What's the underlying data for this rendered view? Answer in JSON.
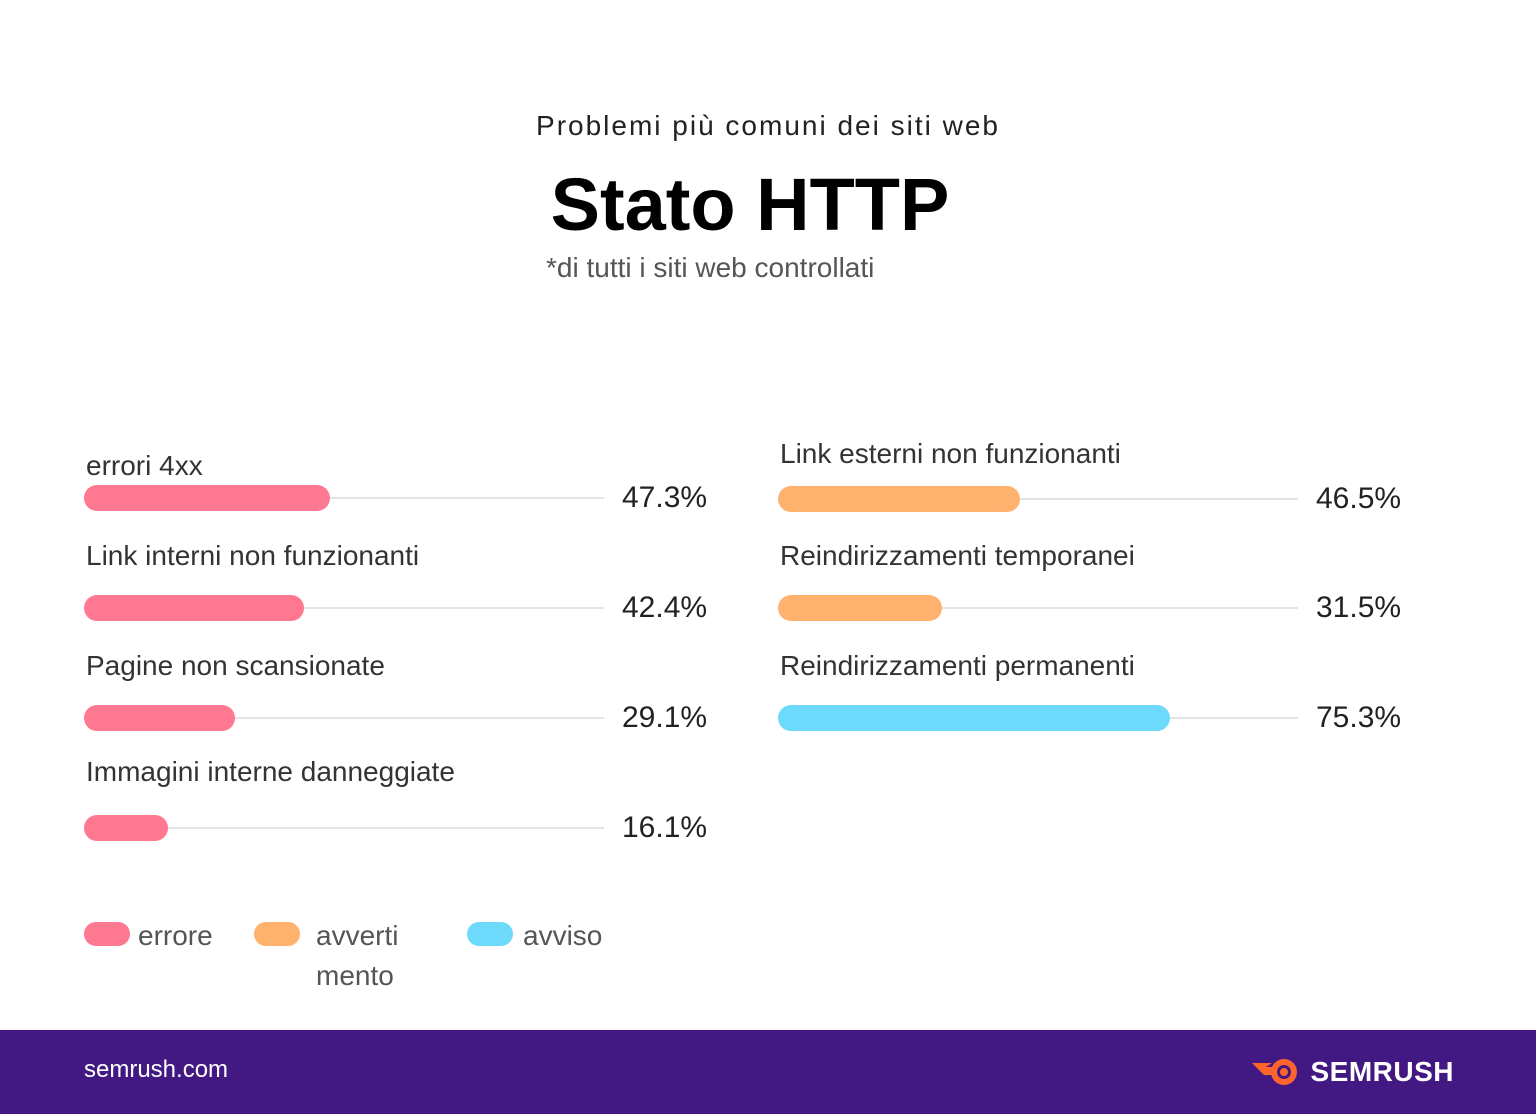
{
  "header": {
    "kicker": "Problemi più comuni dei siti web",
    "title": "Stato HTTP",
    "subtitle": "*di tutti i siti web controllati"
  },
  "colors": {
    "errore": "#ff7891",
    "avvertimento": "#ffb26e",
    "avviso": "#6ddafc",
    "footer": "#421983"
  },
  "chart_data": {
    "type": "bar",
    "orientation": "horizontal",
    "unit": "%",
    "xlim": [
      0,
      100
    ],
    "items": [
      {
        "label": "errori 4xx",
        "value": 47.3,
        "display": "47.3%",
        "category": "errore"
      },
      {
        "label": "Link interni non funzionanti",
        "value": 42.4,
        "display": "42.4%",
        "category": "errore"
      },
      {
        "label": "Pagine non scansionate",
        "value": 29.1,
        "display": "29.1%",
        "category": "errore"
      },
      {
        "label": "Immagini interne danneggiate",
        "value": 16.1,
        "display": "16.1%",
        "category": "errore"
      },
      {
        "label": "Link esterni non funzionanti",
        "value": 46.5,
        "display": "46.5%",
        "category": "avvertimento"
      },
      {
        "label": "Reindirizzamenti temporanei",
        "value": 31.5,
        "display": "31.5%",
        "category": "avvertimento"
      },
      {
        "label": "Reindirizzamenti permanenti",
        "value": 75.3,
        "display": "75.3%",
        "category": "avviso"
      }
    ],
    "legend": [
      {
        "key": "errore",
        "label": "errore"
      },
      {
        "key": "avvertimento",
        "label": "avverti\nmento"
      },
      {
        "key": "avviso",
        "label": "avviso"
      }
    ],
    "legend_position": "bottom-left"
  },
  "footer": {
    "site": "semrush.com",
    "brand": "SEMRUSH",
    "logo_icon": "semrush-fire-icon"
  }
}
